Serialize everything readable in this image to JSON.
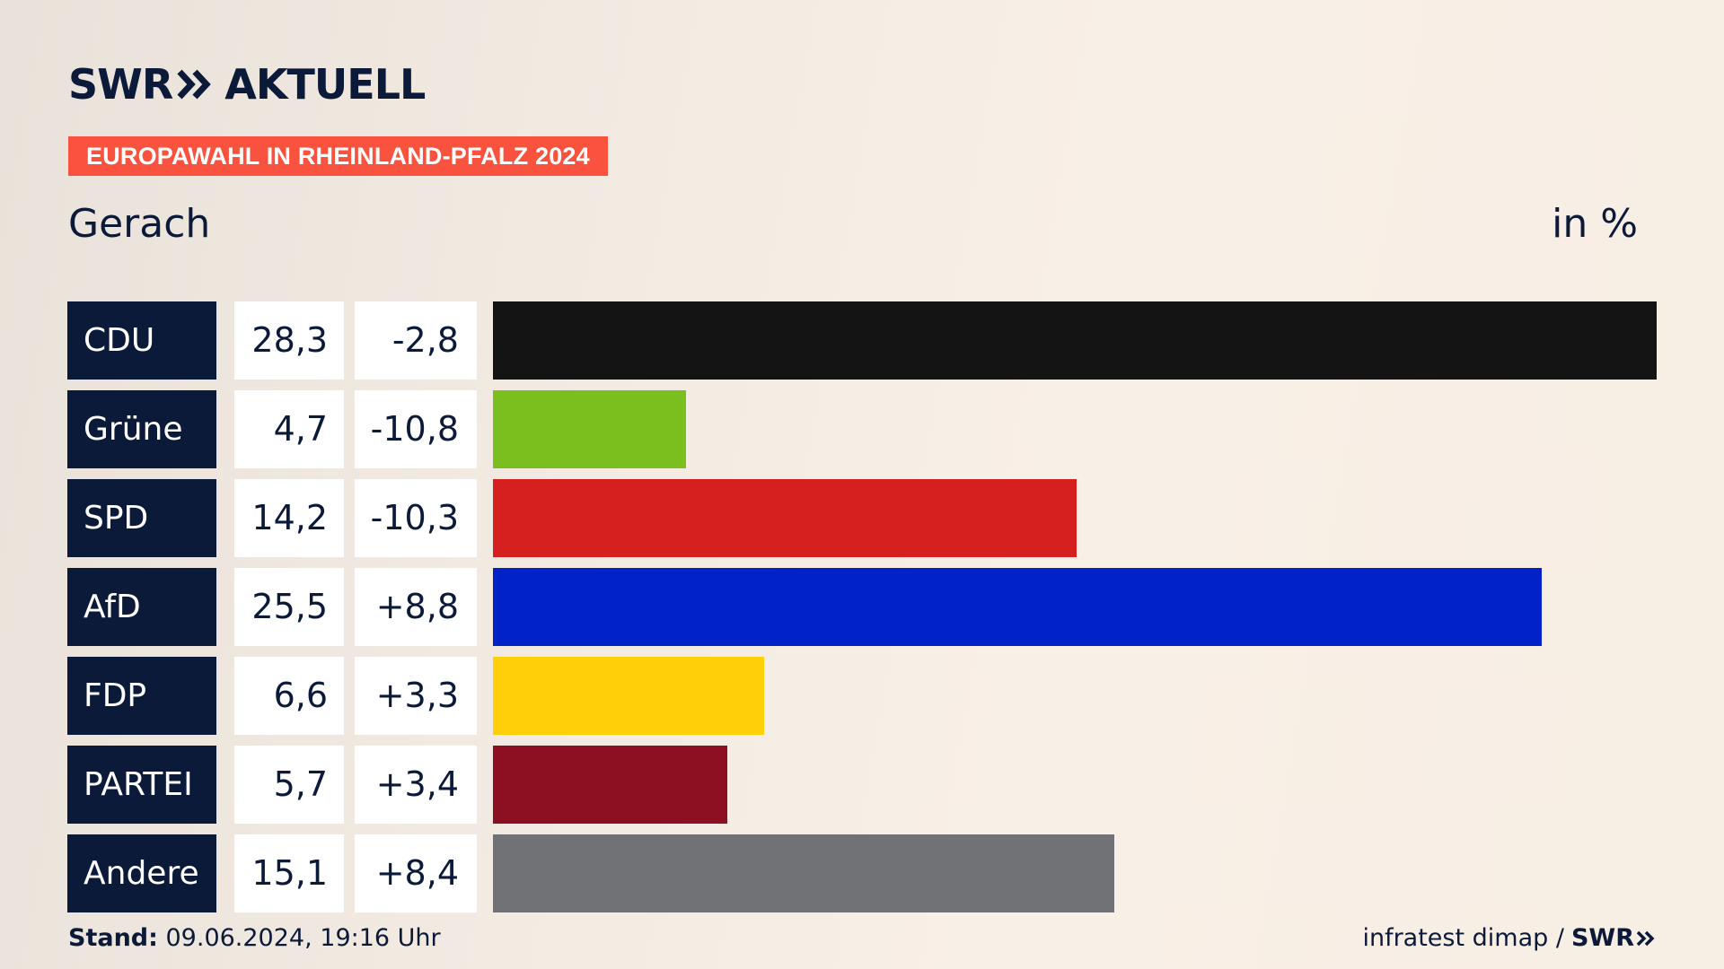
{
  "brand": {
    "swr": "SWR",
    "name": "AKTUELL"
  },
  "banner": "EUROPAWAHL IN RHEINLAND-PFALZ 2024",
  "place": "Gerach",
  "unit": "in %",
  "colors": {
    "navy": "#0c1a3a",
    "banner": "#f9533f"
  },
  "chart_data": {
    "type": "bar",
    "orientation": "horizontal",
    "title": "",
    "xlabel": "",
    "ylabel": "",
    "xlim": [
      0,
      28.3
    ],
    "categories": [
      "CDU",
      "Grüne",
      "SPD",
      "AfD",
      "FDP",
      "PARTEI",
      "Andere"
    ],
    "values": [
      28.3,
      4.7,
      14.2,
      25.5,
      6.6,
      5.7,
      15.1
    ],
    "value_labels": [
      "28,3",
      "4,7",
      "14,2",
      "25,5",
      "6,6",
      "5,7",
      "15,1"
    ],
    "diff_labels": [
      "-2,8",
      "-10,8",
      "-10,3",
      "+8,8",
      "+3,3",
      "+3,4",
      "+8,4"
    ],
    "colors": [
      "#141414",
      "#7abf1e",
      "#d61f1f",
      "#0022c8",
      "#ffcf0a",
      "#8d0f22",
      "#717275"
    ]
  },
  "footer": {
    "stand_label": "Stand:",
    "stand_value": " 09.06.2024, 19:16 Uhr",
    "source": "infratest dimap /",
    "source_brand": "SWR"
  }
}
